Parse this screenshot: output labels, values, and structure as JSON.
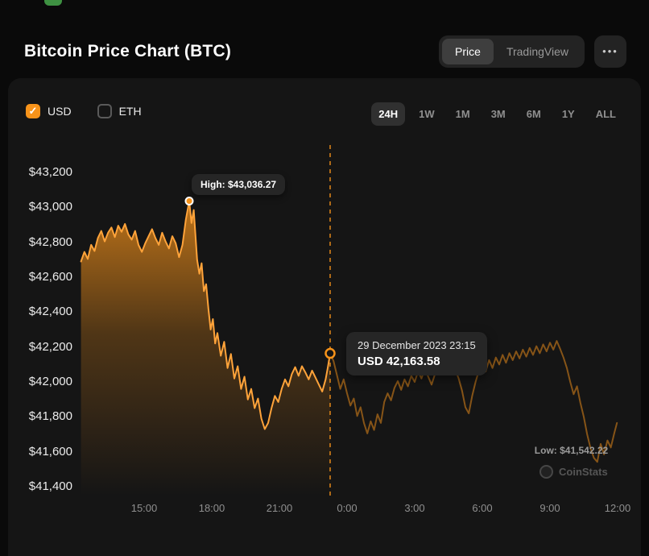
{
  "header": {
    "title": "Bitcoin Price Chart (BTC)",
    "view_switch": {
      "price_label": "Price",
      "tradingview_label": "TradingView",
      "selected": "Price"
    },
    "more_button_label": "•••"
  },
  "controls": {
    "currency_usd": {
      "label": "USD",
      "checked": true
    },
    "currency_eth": {
      "label": "ETH",
      "checked": false
    },
    "ranges": [
      {
        "label": "24H",
        "selected": true
      },
      {
        "label": "1W",
        "selected": false
      },
      {
        "label": "1M",
        "selected": false
      },
      {
        "label": "3M",
        "selected": false
      },
      {
        "label": "6M",
        "selected": false
      },
      {
        "label": "1Y",
        "selected": false
      },
      {
        "label": "ALL",
        "selected": false
      }
    ]
  },
  "chart_data": {
    "type": "area",
    "accent_color": "#f7931a",
    "ylim": [
      41400,
      43200
    ],
    "y_ticks": [
      {
        "label": "$43,200",
        "value": 43200
      },
      {
        "label": "$43,000",
        "value": 43000
      },
      {
        "label": "$42,800",
        "value": 42800
      },
      {
        "label": "$42,600",
        "value": 42600
      },
      {
        "label": "$42,400",
        "value": 42400
      },
      {
        "label": "$42,200",
        "value": 42200
      },
      {
        "label": "$42,000",
        "value": 42000
      },
      {
        "label": "$41,800",
        "value": 41800
      },
      {
        "label": "$41,600",
        "value": 41600
      },
      {
        "label": "$41,400",
        "value": 41400
      }
    ],
    "x_ticks": [
      {
        "label": "15:00",
        "t": 15
      },
      {
        "label": "18:00",
        "t": 18
      },
      {
        "label": "21:00",
        "t": 21
      },
      {
        "label": "0:00",
        "t": 24
      },
      {
        "label": "3:00",
        "t": 27
      },
      {
        "label": "6:00",
        "t": 30
      },
      {
        "label": "9:00",
        "t": 33
      },
      {
        "label": "12:00",
        "t": 36
      }
    ],
    "annotations": {
      "high": {
        "label": "High: $43,036.27",
        "t": 17.0,
        "price": 43036.27
      },
      "low": {
        "label": "Low: $41,542.22",
        "t": 35.1,
        "price": 41542.22
      },
      "cursor": {
        "date_label": "29 December 2023 23:15",
        "value_label": "USD 42,163.58",
        "t": 23.25,
        "price": 42163.58
      }
    },
    "series": [
      {
        "name": "BTC-USD",
        "points": [
          [
            12.2,
            42690
          ],
          [
            12.35,
            42745
          ],
          [
            12.5,
            42705
          ],
          [
            12.65,
            42785
          ],
          [
            12.8,
            42750
          ],
          [
            12.95,
            42825
          ],
          [
            13.1,
            42865
          ],
          [
            13.25,
            42805
          ],
          [
            13.4,
            42855
          ],
          [
            13.55,
            42885
          ],
          [
            13.7,
            42830
          ],
          [
            13.85,
            42895
          ],
          [
            14.0,
            42860
          ],
          [
            14.15,
            42905
          ],
          [
            14.3,
            42845
          ],
          [
            14.45,
            42815
          ],
          [
            14.6,
            42865
          ],
          [
            14.75,
            42785
          ],
          [
            14.9,
            42745
          ],
          [
            15.05,
            42795
          ],
          [
            15.2,
            42835
          ],
          [
            15.35,
            42875
          ],
          [
            15.5,
            42825
          ],
          [
            15.65,
            42785
          ],
          [
            15.8,
            42855
          ],
          [
            15.95,
            42805
          ],
          [
            16.1,
            42765
          ],
          [
            16.25,
            42835
          ],
          [
            16.4,
            42795
          ],
          [
            16.55,
            42715
          ],
          [
            16.7,
            42785
          ],
          [
            16.85,
            42930
          ],
          [
            17.0,
            43036.27
          ],
          [
            17.1,
            42910
          ],
          [
            17.2,
            42985
          ],
          [
            17.35,
            42700
          ],
          [
            17.45,
            42620
          ],
          [
            17.55,
            42680
          ],
          [
            17.65,
            42520
          ],
          [
            17.75,
            42560
          ],
          [
            17.85,
            42420
          ],
          [
            17.95,
            42300
          ],
          [
            18.05,
            42360
          ],
          [
            18.15,
            42220
          ],
          [
            18.25,
            42280
          ],
          [
            18.4,
            42150
          ],
          [
            18.55,
            42230
          ],
          [
            18.7,
            42080
          ],
          [
            18.85,
            42160
          ],
          [
            19.0,
            42020
          ],
          [
            19.15,
            42090
          ],
          [
            19.3,
            41960
          ],
          [
            19.45,
            42030
          ],
          [
            19.6,
            41900
          ],
          [
            19.75,
            41960
          ],
          [
            19.9,
            41850
          ],
          [
            20.05,
            41905
          ],
          [
            20.2,
            41790
          ],
          [
            20.35,
            41730
          ],
          [
            20.5,
            41765
          ],
          [
            20.65,
            41850
          ],
          [
            20.8,
            41920
          ],
          [
            20.95,
            41885
          ],
          [
            21.1,
            41960
          ],
          [
            21.25,
            42015
          ],
          [
            21.4,
            41975
          ],
          [
            21.55,
            42045
          ],
          [
            21.7,
            42085
          ],
          [
            21.85,
            42035
          ],
          [
            22.0,
            42090
          ],
          [
            22.15,
            42055
          ],
          [
            22.3,
            42015
          ],
          [
            22.45,
            42065
          ],
          [
            22.6,
            42025
          ],
          [
            22.75,
            41985
          ],
          [
            22.9,
            41945
          ],
          [
            23.05,
            42015
          ],
          [
            23.15,
            42085
          ],
          [
            23.25,
            42163.58
          ],
          [
            23.4,
            42120
          ],
          [
            23.55,
            42040
          ],
          [
            23.7,
            41960
          ],
          [
            23.85,
            42015
          ],
          [
            24.0,
            41935
          ],
          [
            24.15,
            41865
          ],
          [
            24.3,
            41905
          ],
          [
            24.45,
            41805
          ],
          [
            24.6,
            41855
          ],
          [
            24.75,
            41765
          ],
          [
            24.9,
            41705
          ],
          [
            25.05,
            41775
          ],
          [
            25.2,
            41725
          ],
          [
            25.35,
            41815
          ],
          [
            25.5,
            41765
          ],
          [
            25.65,
            41885
          ],
          [
            25.8,
            41935
          ],
          [
            25.95,
            41895
          ],
          [
            26.1,
            41965
          ],
          [
            26.25,
            42005
          ],
          [
            26.4,
            41955
          ],
          [
            26.55,
            42015
          ],
          [
            26.7,
            41975
          ],
          [
            26.85,
            42035
          ],
          [
            27.0,
            42000
          ],
          [
            27.15,
            42060
          ],
          [
            27.3,
            42020
          ],
          [
            27.45,
            42075
          ],
          [
            27.6,
            42030
          ],
          [
            27.75,
            41985
          ],
          [
            27.9,
            42045
          ],
          [
            28.05,
            42095
          ],
          [
            28.2,
            42045
          ],
          [
            28.35,
            42105
          ],
          [
            28.5,
            42065
          ],
          [
            28.65,
            42115
          ],
          [
            28.8,
            42070
          ],
          [
            28.95,
            42020
          ],
          [
            29.1,
            41950
          ],
          [
            29.25,
            41855
          ],
          [
            29.4,
            41820
          ],
          [
            29.55,
            41920
          ],
          [
            29.7,
            42000
          ],
          [
            29.85,
            42065
          ],
          [
            30.0,
            42110
          ],
          [
            30.15,
            42060
          ],
          [
            30.3,
            42125
          ],
          [
            30.45,
            42080
          ],
          [
            30.6,
            42140
          ],
          [
            30.75,
            42100
          ],
          [
            30.9,
            42155
          ],
          [
            31.05,
            42110
          ],
          [
            31.2,
            42165
          ],
          [
            31.35,
            42125
          ],
          [
            31.5,
            42175
          ],
          [
            31.65,
            42135
          ],
          [
            31.8,
            42185
          ],
          [
            31.95,
            42145
          ],
          [
            32.1,
            42195
          ],
          [
            32.25,
            42155
          ],
          [
            32.4,
            42205
          ],
          [
            32.55,
            42165
          ],
          [
            32.7,
            42215
          ],
          [
            32.85,
            42175
          ],
          [
            33.0,
            42225
          ],
          [
            33.15,
            42185
          ],
          [
            33.3,
            42235
          ],
          [
            33.45,
            42190
          ],
          [
            33.6,
            42140
          ],
          [
            33.75,
            42080
          ],
          [
            33.9,
            42000
          ],
          [
            34.05,
            41930
          ],
          [
            34.2,
            41975
          ],
          [
            34.35,
            41880
          ],
          [
            34.5,
            41800
          ],
          [
            34.65,
            41700
          ],
          [
            34.8,
            41620
          ],
          [
            34.95,
            41565
          ],
          [
            35.1,
            41542.22
          ],
          [
            35.25,
            41645
          ],
          [
            35.4,
            41585
          ],
          [
            35.55,
            41665
          ],
          [
            35.7,
            41625
          ],
          [
            35.85,
            41705
          ],
          [
            35.97,
            41765
          ]
        ]
      }
    ]
  },
  "watermark": {
    "label": "CoinStats"
  }
}
